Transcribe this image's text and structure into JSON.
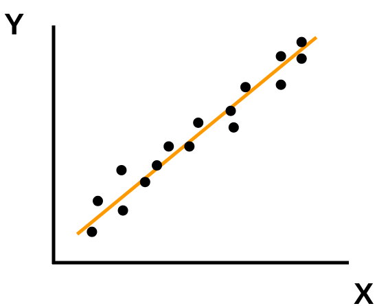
{
  "chart_data": {
    "type": "scatter",
    "title": "",
    "xlabel": "X",
    "ylabel": "Y",
    "xlim": [
      0,
      10
    ],
    "ylim": [
      0,
      10
    ],
    "grid": false,
    "legend": "none",
    "tick_labels": false,
    "points": [
      {
        "x": 1.3,
        "y": 1.3
      },
      {
        "x": 1.5,
        "y": 2.6
      },
      {
        "x": 2.3,
        "y": 3.9
      },
      {
        "x": 2.35,
        "y": 2.2
      },
      {
        "x": 3.1,
        "y": 3.4
      },
      {
        "x": 3.5,
        "y": 4.1
      },
      {
        "x": 3.9,
        "y": 4.9
      },
      {
        "x": 4.6,
        "y": 4.9
      },
      {
        "x": 4.9,
        "y": 5.9
      },
      {
        "x": 6.0,
        "y": 6.4
      },
      {
        "x": 6.1,
        "y": 5.7
      },
      {
        "x": 6.5,
        "y": 7.4
      },
      {
        "x": 7.7,
        "y": 7.5
      },
      {
        "x": 7.7,
        "y": 8.7
      },
      {
        "x": 8.4,
        "y": 8.6
      },
      {
        "x": 8.4,
        "y": 9.3
      }
    ],
    "trendline": {
      "x1": 0.8,
      "y1": 1.2,
      "x2": 8.9,
      "y2": 9.5
    },
    "colors": {
      "points": "#000000",
      "trendline": "#FF9900",
      "axes": "#000000"
    }
  }
}
